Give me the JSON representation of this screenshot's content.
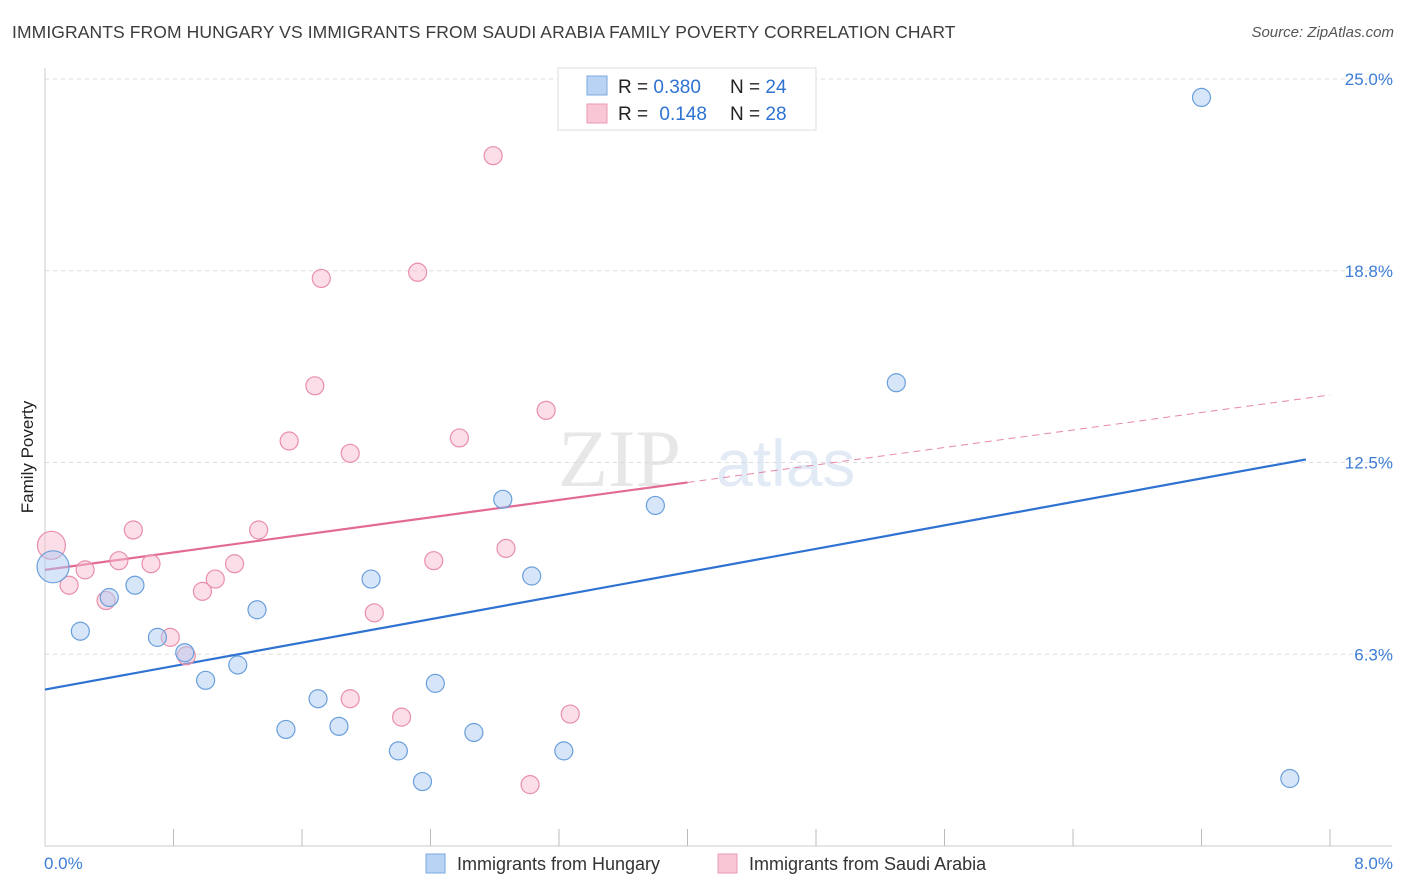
{
  "title": "IMMIGRANTS FROM HUNGARY VS IMMIGRANTS FROM SAUDI ARABIA FAMILY POVERTY CORRELATION CHART",
  "source": "Source: ZipAtlas.com",
  "watermark": {
    "zip": "ZIP",
    "atlas": "atlas"
  },
  "colors": {
    "hungary_fill": "#aecbf2",
    "hungary_stroke": "#6a9fdc",
    "hungary_line": "#2e72d2",
    "saudi_fill": "#f7bed0",
    "saudi_stroke": "#e98fab",
    "saudi_line": "#e26a93",
    "axis_label": "#3d7dd6",
    "grid": "#dddddd"
  },
  "legend_top": [
    {
      "r_label": "R = ",
      "r_value": "0.380",
      "n_label": "N = ",
      "n_value": "24"
    },
    {
      "r_label": "R = ",
      "r_value": "0.148",
      "n_label": "N = ",
      "n_value": "28"
    }
  ],
  "chart_data": {
    "type": "scatter",
    "ylabel": "Family Poverty",
    "xlim": [
      0,
      8.0
    ],
    "ylim": [
      0,
      25.0
    ],
    "y_ticks": [
      {
        "value": 6.25,
        "label": "6.3%"
      },
      {
        "value": 12.5,
        "label": "12.5%"
      },
      {
        "value": 18.75,
        "label": "18.8%"
      },
      {
        "value": 25.0,
        "label": "25.0%"
      }
    ],
    "x_tick_labels": {
      "min": "0.0%",
      "max": "8.0%"
    },
    "grid": true,
    "series": [
      {
        "name": "Immigrants from Hungary",
        "points": [
          [
            0.05,
            9.1
          ],
          [
            0.22,
            7.0
          ],
          [
            0.4,
            8.1
          ],
          [
            0.56,
            8.5
          ],
          [
            0.7,
            6.8
          ],
          [
            0.87,
            6.3
          ],
          [
            1.0,
            5.4
          ],
          [
            1.2,
            5.9
          ],
          [
            1.32,
            7.7
          ],
          [
            1.5,
            3.8
          ],
          [
            1.7,
            4.8
          ],
          [
            1.83,
            3.9
          ],
          [
            2.03,
            8.7
          ],
          [
            2.2,
            3.1
          ],
          [
            2.35,
            2.1
          ],
          [
            2.43,
            5.3
          ],
          [
            2.67,
            3.7
          ],
          [
            2.85,
            11.3
          ],
          [
            3.03,
            8.8
          ],
          [
            3.23,
            3.1
          ],
          [
            3.8,
            11.1
          ],
          [
            5.3,
            15.1
          ],
          [
            7.2,
            24.4
          ],
          [
            7.75,
            2.2
          ]
        ],
        "sizes": [
          16,
          9,
          9,
          9,
          9,
          9,
          9,
          9,
          9,
          9,
          9,
          9,
          9,
          9,
          9,
          9,
          9,
          9,
          9,
          9,
          9,
          9,
          9,
          9
        ],
        "trend": {
          "x0": 0.0,
          "y0": 5.1,
          "x1": 7.85,
          "y1": 12.6
        }
      },
      {
        "name": "Immigrants from Saudi Arabia",
        "points": [
          [
            0.04,
            9.8
          ],
          [
            0.15,
            8.5
          ],
          [
            0.25,
            9.0
          ],
          [
            0.38,
            8.0
          ],
          [
            0.46,
            9.3
          ],
          [
            0.55,
            10.3
          ],
          [
            0.66,
            9.2
          ],
          [
            0.78,
            6.8
          ],
          [
            0.88,
            6.2
          ],
          [
            0.98,
            8.3
          ],
          [
            1.06,
            8.7
          ],
          [
            1.18,
            9.2
          ],
          [
            1.33,
            10.3
          ],
          [
            1.52,
            13.2
          ],
          [
            1.68,
            15.0
          ],
          [
            1.72,
            18.5
          ],
          [
            1.9,
            12.8
          ],
          [
            1.9,
            4.8
          ],
          [
            2.05,
            7.6
          ],
          [
            2.22,
            4.2
          ],
          [
            2.32,
            18.7
          ],
          [
            2.42,
            9.3
          ],
          [
            2.58,
            13.3
          ],
          [
            2.79,
            22.5
          ],
          [
            2.87,
            9.7
          ],
          [
            3.02,
            2.0
          ],
          [
            3.12,
            14.2
          ],
          [
            3.27,
            4.3
          ]
        ],
        "sizes": [
          14,
          9,
          9,
          9,
          9,
          9,
          9,
          9,
          9,
          9,
          9,
          9,
          9,
          9,
          9,
          9,
          9,
          9,
          9,
          9,
          9,
          9,
          9,
          9,
          9,
          9,
          9,
          9
        ],
        "trend": {
          "x0": 0.0,
          "y0": 9.0,
          "x1": 4.0,
          "y1": 11.85
        },
        "trend_dashed": {
          "x0": 4.0,
          "y0": 11.85,
          "x1": 8.0,
          "y1": 14.7
        }
      }
    ],
    "legend": [
      "Immigrants from Hungary",
      "Immigrants from Saudi Arabia"
    ]
  }
}
